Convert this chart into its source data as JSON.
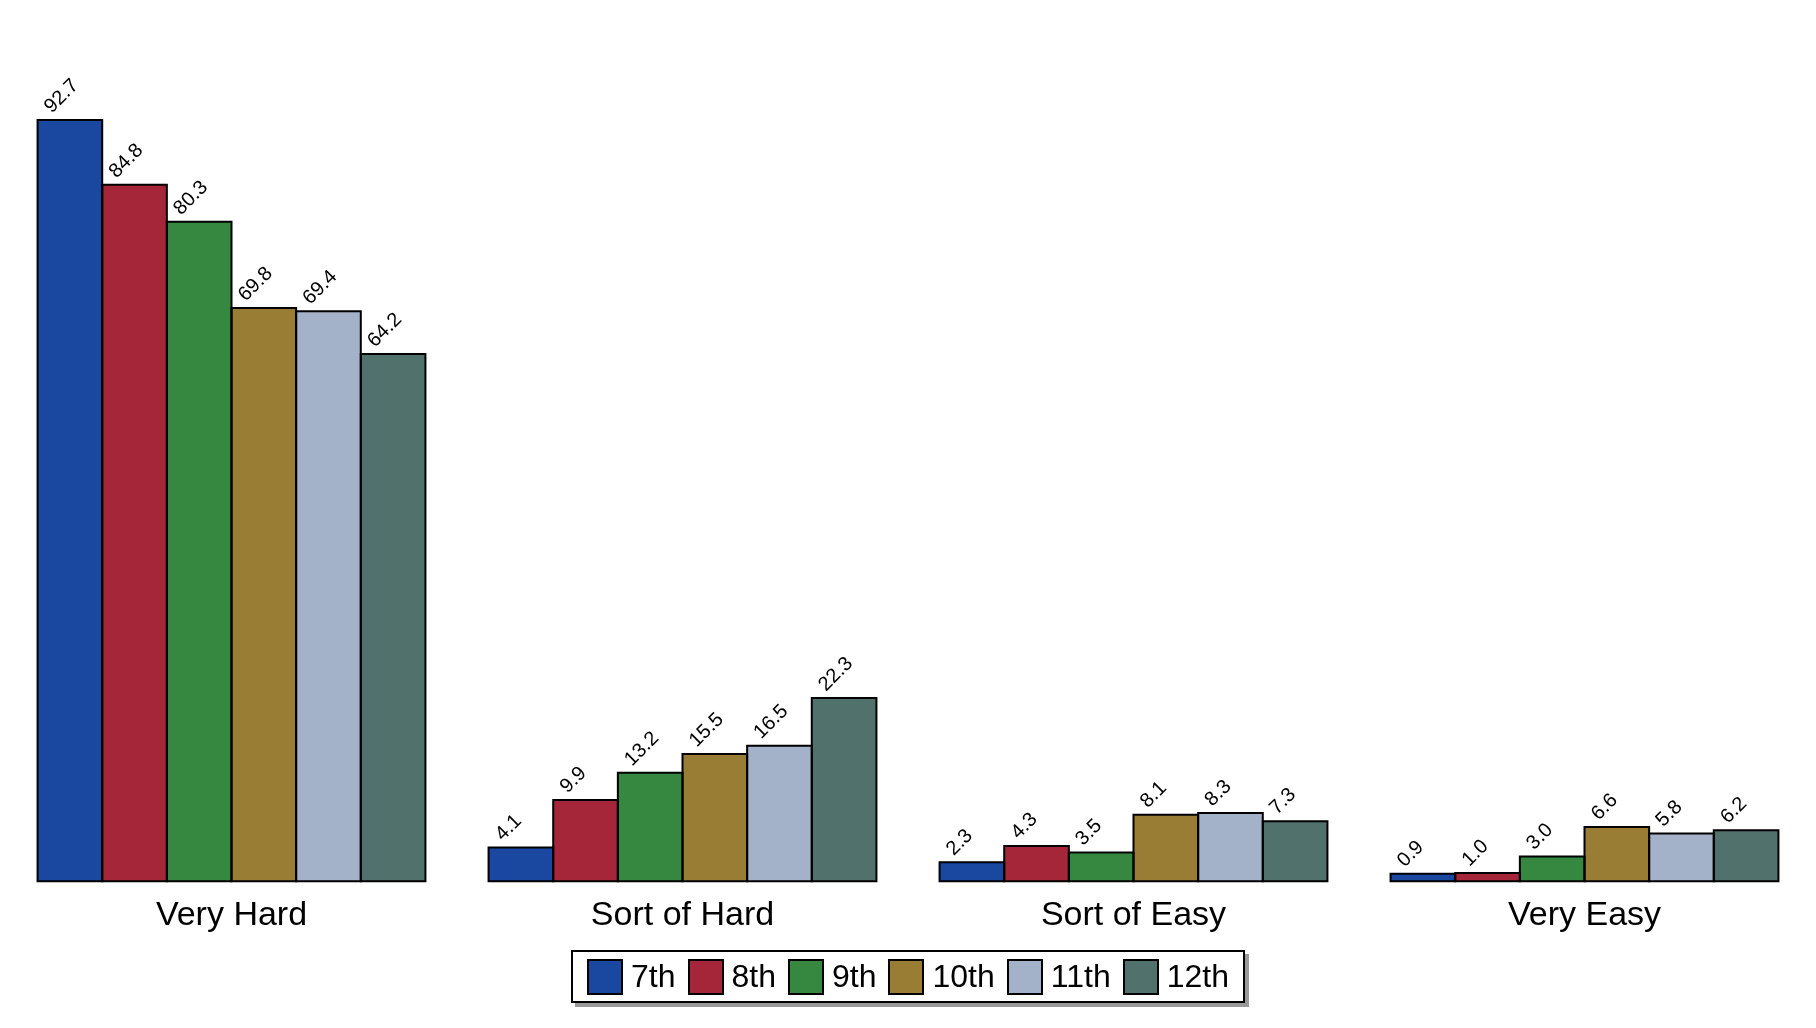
{
  "chart_data": {
    "type": "bar",
    "categories": [
      "Very Hard",
      "Sort of Hard",
      "Sort of Easy",
      "Very Easy"
    ],
    "series": [
      {
        "name": "7th",
        "color": "#1a47a0",
        "values": [
          92.7,
          4.1,
          2.3,
          0.9
        ],
        "value_labels": [
          "92.7",
          "4.1",
          "2.3",
          "0.9"
        ]
      },
      {
        "name": "8th",
        "color": "#a52638",
        "values": [
          84.8,
          9.9,
          4.3,
          1.0
        ],
        "value_labels": [
          "84.8",
          "9.9",
          "4.3",
          "1.0"
        ]
      },
      {
        "name": "9th",
        "color": "#368840",
        "values": [
          80.3,
          13.2,
          3.5,
          3.0
        ],
        "value_labels": [
          "80.3",
          "13.2",
          "3.5",
          "3.0"
        ]
      },
      {
        "name": "10th",
        "color": "#9a7d34",
        "values": [
          69.8,
          15.5,
          8.1,
          6.6
        ],
        "value_labels": [
          "69.8",
          "15.5",
          "8.1",
          "6.6"
        ]
      },
      {
        "name": "11th",
        "color": "#a3b1c9",
        "values": [
          69.4,
          16.5,
          8.3,
          5.8
        ],
        "value_labels": [
          "69.4",
          "16.5",
          "8.3",
          "5.8"
        ]
      },
      {
        "name": "12th",
        "color": "#51716d",
        "values": [
          64.2,
          22.3,
          7.3,
          6.2
        ],
        "value_labels": [
          "64.2",
          "22.3",
          "7.3",
          "6.2"
        ]
      }
    ],
    "grid": false,
    "legend": "bottom"
  }
}
